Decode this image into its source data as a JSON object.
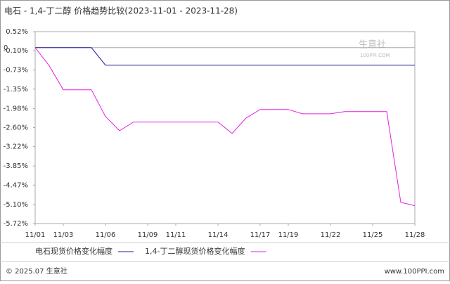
{
  "chart_data": {
    "type": "line",
    "title": "电石 - 1,4-丁二醇 价格趋势比较(2023-11-01 - 2023-11-28)",
    "categories": [
      "11/01",
      null,
      "11/03",
      null,
      null,
      "11/06",
      null,
      null,
      "11/09",
      null,
      "11/11",
      null,
      null,
      "11/14",
      null,
      null,
      "11/17",
      null,
      "11/19",
      null,
      null,
      "11/22",
      null,
      null,
      "11/25",
      null,
      null,
      "11/28"
    ],
    "series": [
      {
        "name": "电石现货价格变化幅度",
        "color": "#1c1c9c",
        "values": [
          0,
          0,
          0,
          0,
          0,
          -0.57,
          -0.57,
          -0.57,
          -0.57,
          -0.57,
          -0.57,
          -0.57,
          -0.57,
          -0.57,
          -0.57,
          -0.57,
          -0.57,
          -0.57,
          -0.57,
          -0.57,
          -0.57,
          -0.57,
          -0.57,
          -0.57,
          -0.57,
          -0.57,
          -0.57,
          -0.57
        ]
      },
      {
        "name": "1,4-丁二醇现货价格变化幅度",
        "color": "#e020e0",
        "values": [
          0,
          -0.59,
          -1.37,
          -1.37,
          -1.37,
          -2.24,
          -2.7,
          -2.42,
          -2.42,
          -2.42,
          -2.42,
          -2.42,
          -2.42,
          -2.42,
          -2.79,
          -2.29,
          -2.01,
          -2.01,
          -2.01,
          -2.15,
          -2.15,
          -2.15,
          -2.08,
          -2.08,
          -2.08,
          -2.08,
          -5.03,
          -5.14
        ]
      }
    ],
    "ylim": [
      -5.72,
      0.52
    ],
    "yticks": [
      {
        "value": 0.52,
        "label": "0.52%"
      },
      {
        "value": -0.1,
        "label": "-0.10%"
      },
      {
        "value": -0.73,
        "label": "-0.73%"
      },
      {
        "value": -1.35,
        "label": "-1.35%"
      },
      {
        "value": -1.98,
        "label": "-1.98%"
      },
      {
        "value": -2.6,
        "label": "-2.60%"
      },
      {
        "value": -3.22,
        "label": "-3.22%"
      },
      {
        "value": -3.85,
        "label": "-3.85%"
      },
      {
        "value": -4.47,
        "label": "-4.47%"
      },
      {
        "value": -5.1,
        "label": "-5.10%"
      },
      {
        "value": -5.72,
        "label": "-5.72%"
      },
      0
    ],
    "watermark": {
      "name": "生意社",
      "site": "100PPI.COM"
    },
    "footer": {
      "copyright": "© 2025.07 生意社",
      "site": "www.100PPI.com"
    }
  }
}
